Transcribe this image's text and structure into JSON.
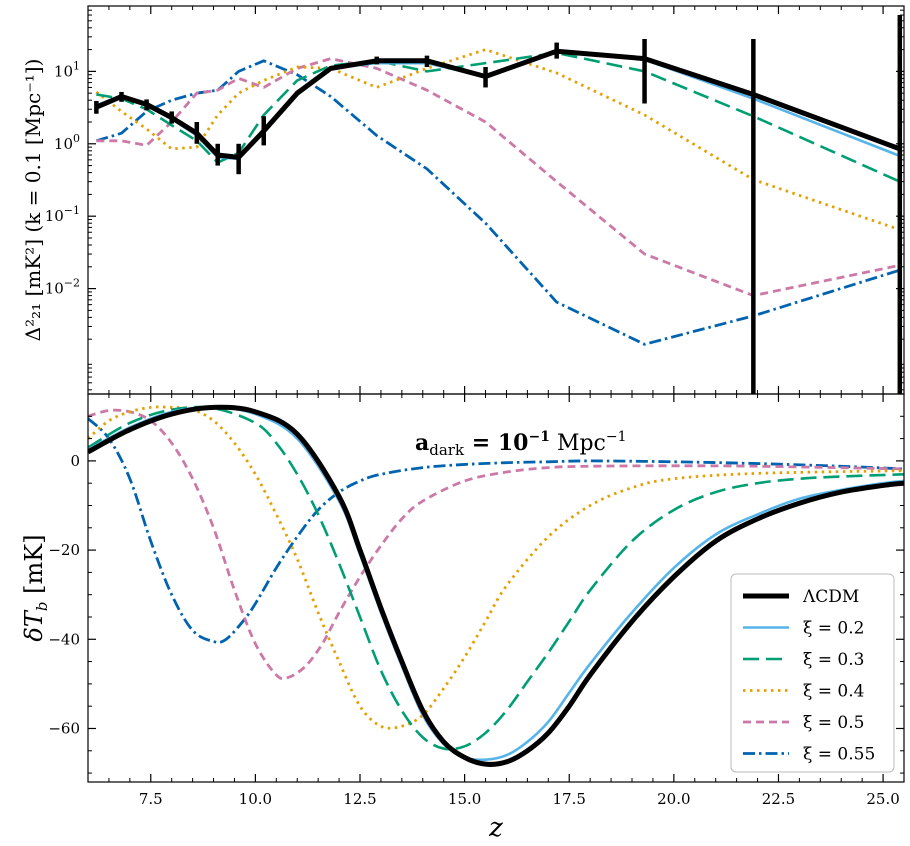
{
  "colors": {
    "lcdm": "#000000",
    "xi_0_2": "#56B4E9",
    "xi_0_3": "#009E73",
    "xi_0_4": "#E69F00",
    "xi_0_5": "#CC79A7",
    "xi_0_55": "#0063B0"
  },
  "chart_data": [
    {
      "type": "line",
      "panel": "top",
      "ylabel": "Δ²₂₁ [mK²] (k = 0.1 [Mpc⁻¹])",
      "yscale": "log",
      "xlim": [
        6,
        25.5
      ],
      "ylim": [
        0.00035,
        80
      ],
      "yticks": [
        {
          "value": 0.01,
          "base": "10",
          "exp": "−2"
        },
        {
          "value": 0.1,
          "base": "10",
          "exp": "−1"
        },
        {
          "value": 1,
          "base": "10",
          "exp": "0"
        },
        {
          "value": 10,
          "base": "10",
          "exp": "1"
        }
      ],
      "x": [
        6.2,
        6.8,
        7.4,
        8.0,
        8.6,
        9.1,
        9.6,
        10.2,
        11.0,
        11.8,
        12.9,
        14.1,
        15.5,
        17.2,
        19.3,
        21.9,
        25.4
      ],
      "series": [
        {
          "name": "ΛCDM",
          "key": "lcdm",
          "style": "solid-thick",
          "values": [
            3.2,
            4.5,
            3.5,
            2.3,
            1.4,
            0.7,
            0.65,
            1.5,
            5.0,
            11.0,
            14.0,
            14.0,
            8.5,
            19.0,
            15.0,
            4.8,
            0.85
          ],
          "errorbars": [
            [
              2.6,
              3.9
            ],
            [
              3.8,
              5.2
            ],
            [
              2.9,
              4.1
            ],
            [
              1.9,
              2.8
            ],
            [
              1.0,
              2.0
            ],
            [
              0.5,
              1.0
            ],
            [
              0.38,
              1.0
            ],
            [
              0.95,
              2.4
            ],
            [
              null,
              null
            ],
            [
              null,
              null
            ],
            [
              12.5,
              16.0
            ],
            [
              11.5,
              16.5
            ],
            [
              6.0,
              11.5
            ],
            [
              15.0,
              25.0
            ],
            [
              3.6,
              28.0
            ],
            [
              0.00035,
              28.0
            ],
            [
              0.00035,
              60.0
            ]
          ]
        },
        {
          "name": "ξ = 0.2",
          "key": "xi_0_2",
          "style": "solid",
          "values": [
            3.4,
            4.6,
            3.4,
            2.2,
            1.3,
            0.65,
            0.62,
            1.6,
            5.2,
            11.0,
            13.0,
            13.0,
            8.5,
            19.0,
            14.5,
            4.2,
            0.68
          ]
        },
        {
          "name": "ξ = 0.3",
          "key": "xi_0_3",
          "style": "dashed-long",
          "values": [
            4.8,
            4.2,
            3.0,
            1.8,
            1.1,
            0.55,
            0.75,
            2.5,
            7.5,
            12.0,
            14.0,
            10.0,
            13.0,
            18.0,
            10.0,
            2.4,
            0.3
          ]
        },
        {
          "name": "ξ = 0.4",
          "key": "xi_0_4",
          "style": "dotted",
          "values": [
            5.2,
            2.8,
            1.6,
            0.85,
            0.9,
            2.5,
            5.0,
            7.5,
            11.5,
            11.0,
            6.0,
            11.0,
            20.0,
            9.5,
            2.5,
            0.32,
            0.065
          ]
        },
        {
          "name": "ξ = 0.5",
          "key": "xi_0_5",
          "style": "dashed",
          "values": [
            1.1,
            1.1,
            0.95,
            2.0,
            5.0,
            5.5,
            8.0,
            6.0,
            11.0,
            15.0,
            11.0,
            5.5,
            2.0,
            0.3,
            0.03,
            0.008,
            0.021
          ]
        },
        {
          "name": "ξ = 0.55",
          "key": "xi_0_55",
          "style": "dashdot",
          "values": [
            1.1,
            1.4,
            2.8,
            4.0,
            5.0,
            5.5,
            10.0,
            14.0,
            9.0,
            4.5,
            1.3,
            0.45,
            0.08,
            0.0065,
            0.0017,
            0.0042,
            0.018
          ]
        }
      ]
    },
    {
      "type": "line",
      "panel": "bottom",
      "title": "a_dark = 10⁻¹ Mpc⁻¹",
      "title_parts": {
        "a": "a",
        "sub": "dark",
        "eq": " = ",
        "ten": "10",
        "exp": "−1",
        "unit": " Mpc",
        "unit_exp": "−1"
      },
      "xlabel": "z",
      "ylabel": "δT_b [mK]",
      "ylabel_parts": {
        "delta": "δ",
        "T": "T",
        "sub": "b",
        "unit": " [mK]"
      },
      "xlim": [
        6,
        25.5
      ],
      "ylim": [
        -72,
        15
      ],
      "xticks": [
        7.5,
        10.0,
        12.5,
        15.0,
        17.5,
        20.0,
        22.5,
        25.0
      ],
      "xtick_labels": [
        "7.5",
        "10.0",
        "12.5",
        "15.0",
        "17.5",
        "20.0",
        "22.5",
        "25.0"
      ],
      "yticks": [
        0,
        -20,
        -40,
        -60
      ],
      "ytick_labels": [
        "0",
        "−20",
        "−40",
        "−60"
      ],
      "series": [
        {
          "name": "ΛCDM",
          "key": "lcdm",
          "style": "solid-thick",
          "points": [
            [
              6,
              2
            ],
            [
              7,
              7
            ],
            [
              8,
              10.5
            ],
            [
              9,
              12
            ],
            [
              10,
              11
            ],
            [
              11,
              6
            ],
            [
              12,
              -8
            ],
            [
              12.5,
              -20
            ],
            [
              13,
              -33
            ],
            [
              13.5,
              -45
            ],
            [
              14,
              -56
            ],
            [
              14.5,
              -63
            ],
            [
              15,
              -66.5
            ],
            [
              15.5,
              -68
            ],
            [
              16,
              -67.5
            ],
            [
              16.5,
              -65
            ],
            [
              17,
              -61
            ],
            [
              17.5,
              -55
            ],
            [
              18,
              -48
            ],
            [
              19,
              -36
            ],
            [
              20,
              -26
            ],
            [
              21,
              -18
            ],
            [
              22,
              -13
            ],
            [
              23,
              -9.5
            ],
            [
              24,
              -7
            ],
            [
              25,
              -5.5
            ],
            [
              25.5,
              -5
            ]
          ]
        },
        {
          "name": "ξ = 0.2",
          "key": "xi_0_2",
          "style": "solid",
          "points": [
            [
              6,
              2.5
            ],
            [
              7,
              7.5
            ],
            [
              8,
              11
            ],
            [
              9,
              12
            ],
            [
              10,
              10.5
            ],
            [
              11,
              5
            ],
            [
              12,
              -9
            ],
            [
              12.5,
              -21
            ],
            [
              13,
              -34
            ],
            [
              13.5,
              -46
            ],
            [
              14,
              -57
            ],
            [
              14.5,
              -63.5
            ],
            [
              15,
              -66.5
            ],
            [
              15.5,
              -67
            ],
            [
              16,
              -66
            ],
            [
              16.5,
              -63
            ],
            [
              17,
              -58.5
            ],
            [
              17.5,
              -52
            ],
            [
              18,
              -45.5
            ],
            [
              19,
              -34
            ],
            [
              20,
              -24
            ],
            [
              21,
              -16.5
            ],
            [
              22,
              -12
            ],
            [
              23,
              -8.5
            ],
            [
              24,
              -6.5
            ],
            [
              25,
              -5
            ],
            [
              25.5,
              -4.5
            ]
          ]
        },
        {
          "name": "ξ = 0.3",
          "key": "xi_0_3",
          "style": "dashed-long",
          "points": [
            [
              6,
              3
            ],
            [
              7,
              8.5
            ],
            [
              8,
              11.5
            ],
            [
              9,
              11.8
            ],
            [
              10,
              8.5
            ],
            [
              10.5,
              4
            ],
            [
              11,
              -3
            ],
            [
              11.5,
              -12
            ],
            [
              12,
              -23
            ],
            [
              12.5,
              -35
            ],
            [
              13,
              -47
            ],
            [
              13.5,
              -56
            ],
            [
              14,
              -62
            ],
            [
              14.5,
              -64.5
            ],
            [
              15,
              -64
            ],
            [
              15.5,
              -61
            ],
            [
              16,
              -56
            ],
            [
              16.5,
              -49.5
            ],
            [
              17,
              -43
            ],
            [
              17.5,
              -36
            ],
            [
              18,
              -29
            ],
            [
              19,
              -18
            ],
            [
              20,
              -11
            ],
            [
              21,
              -7
            ],
            [
              22,
              -5
            ],
            [
              23,
              -4
            ],
            [
              24,
              -3.5
            ],
            [
              25.5,
              -3
            ]
          ]
        },
        {
          "name": "ξ = 0.4",
          "key": "xi_0_4",
          "style": "dotted",
          "points": [
            [
              6,
              5
            ],
            [
              6.5,
              9
            ],
            [
              7,
              11
            ],
            [
              7.5,
              12
            ],
            [
              8,
              12
            ],
            [
              8.5,
              11.5
            ],
            [
              9,
              9
            ],
            [
              9.5,
              4
            ],
            [
              10,
              -3
            ],
            [
              10.5,
              -12
            ],
            [
              11,
              -22
            ],
            [
              11.5,
              -34
            ],
            [
              12,
              -45
            ],
            [
              12.5,
              -55
            ],
            [
              13,
              -59.5
            ],
            [
              13.5,
              -59.5
            ],
            [
              14,
              -57
            ],
            [
              14.5,
              -51
            ],
            [
              15,
              -44
            ],
            [
              15.5,
              -36
            ],
            [
              16,
              -28
            ],
            [
              17,
              -17
            ],
            [
              18,
              -10
            ],
            [
              19,
              -6
            ],
            [
              20,
              -4
            ],
            [
              22,
              -2.8
            ],
            [
              25.5,
              -2.2
            ]
          ]
        },
        {
          "name": "ξ = 0.5",
          "key": "xi_0_5",
          "style": "dashed",
          "points": [
            [
              6,
              10
            ],
            [
              6.5,
              11.3
            ],
            [
              7,
              11
            ],
            [
              7.5,
              9
            ],
            [
              8,
              4
            ],
            [
              8.5,
              -4
            ],
            [
              9,
              -15
            ],
            [
              9.5,
              -29
            ],
            [
              10,
              -41
            ],
            [
              10.5,
              -48
            ],
            [
              10.8,
              -48.5
            ],
            [
              11.2,
              -46
            ],
            [
              11.6,
              -41
            ],
            [
              12,
              -34
            ],
            [
              12.5,
              -26
            ],
            [
              13,
              -19
            ],
            [
              13.5,
              -13
            ],
            [
              14,
              -9
            ],
            [
              15,
              -4.5
            ],
            [
              16,
              -2.5
            ],
            [
              17,
              -1.5
            ],
            [
              18,
              -1.2
            ],
            [
              20,
              -1.1
            ],
            [
              22,
              -1.2
            ],
            [
              25.5,
              -1.8
            ]
          ]
        },
        {
          "name": "ξ = 0.55",
          "key": "xi_0_55",
          "style": "dashdot",
          "points": [
            [
              6,
              9.5
            ],
            [
              6.5,
              5
            ],
            [
              7,
              -4
            ],
            [
              7.5,
              -18
            ],
            [
              8,
              -30
            ],
            [
              8.5,
              -38
            ],
            [
              9,
              -40.5
            ],
            [
              9.3,
              -40
            ],
            [
              9.7,
              -36
            ],
            [
              10,
              -32
            ],
            [
              10.5,
              -24
            ],
            [
              11,
              -17
            ],
            [
              11.5,
              -11
            ],
            [
              12,
              -7
            ],
            [
              12.5,
              -4.5
            ],
            [
              13,
              -3
            ],
            [
              14,
              -1.5
            ],
            [
              15,
              -0.8
            ],
            [
              16,
              -0.4
            ],
            [
              17,
              -0.2
            ],
            [
              18,
              0
            ],
            [
              20,
              -0.2
            ],
            [
              22,
              -0.6
            ],
            [
              24,
              -1.2
            ],
            [
              25.5,
              -1.8
            ]
          ]
        }
      ],
      "legend": {
        "placement": "bottom-right",
        "entries": [
          {
            "label": "ΛCDM",
            "key": "lcdm",
            "style": "solid-thick"
          },
          {
            "label": "ξ = 0.2",
            "key": "xi_0_2",
            "style": "solid"
          },
          {
            "label": "ξ = 0.3",
            "key": "xi_0_3",
            "style": "dashed-long"
          },
          {
            "label": "ξ = 0.4",
            "key": "xi_0_4",
            "style": "dotted"
          },
          {
            "label": "ξ = 0.5",
            "key": "xi_0_5",
            "style": "dashed"
          },
          {
            "label": "ξ = 0.55",
            "key": "xi_0_55",
            "style": "dashdot"
          }
        ]
      }
    }
  ]
}
